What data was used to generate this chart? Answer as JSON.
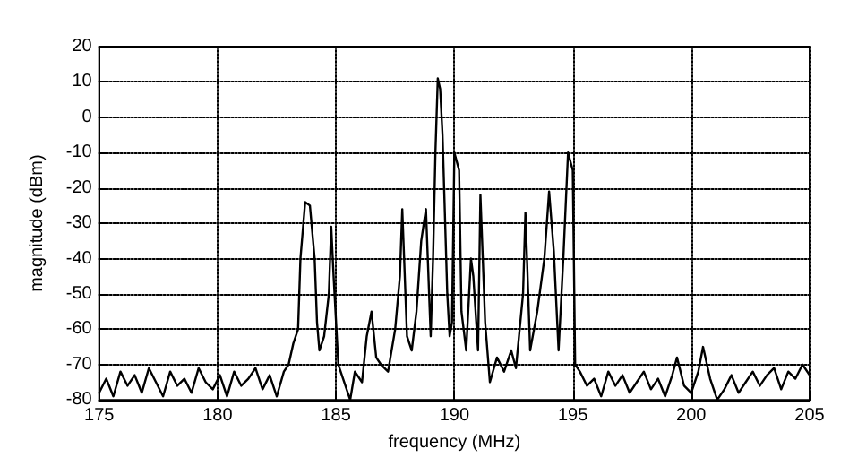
{
  "chart_data": {
    "type": "line",
    "xlabel": "frequency (MHz)",
    "ylabel": "magnitude (dBm)",
    "xlim": [
      175,
      205
    ],
    "ylim": [
      -80,
      20
    ],
    "xticks": [
      175,
      180,
      185,
      190,
      195,
      200,
      205
    ],
    "yticks": [
      -80,
      -70,
      -60,
      -50,
      -40,
      -30,
      -20,
      -10,
      0,
      10,
      20
    ],
    "grid": true,
    "marker": "none",
    "line_style": "solid",
    "series": [
      {
        "color": "#000000",
        "x": [
          175,
          175.3,
          175.6,
          175.9,
          176.2,
          176.5,
          176.8,
          177.1,
          177.4,
          177.7,
          178,
          178.3,
          178.6,
          178.9,
          179.2,
          179.5,
          179.8,
          180.1,
          180.4,
          180.7,
          181,
          181.3,
          181.6,
          181.9,
          182.2,
          182.5,
          182.8,
          183,
          183.2,
          183.4,
          183.5,
          183.7,
          183.9,
          184.1,
          184.2,
          184.3,
          184.5,
          184.7,
          184.8,
          184.9,
          185.1,
          185.3,
          185.6,
          185.8,
          186.1,
          186.3,
          186.5,
          186.7,
          186.9,
          187.2,
          187.5,
          187.7,
          187.8,
          188,
          188.2,
          188.4,
          188.6,
          188.8,
          189,
          189.1,
          189.2,
          189.3,
          189.4,
          189.5,
          189.7,
          189.8,
          189.9,
          190,
          190.2,
          190.3,
          190.5,
          190.7,
          190.8,
          191,
          191.1,
          191.3,
          191.5,
          191.8,
          192.1,
          192.4,
          192.6,
          192.9,
          193,
          193.2,
          193.5,
          193.8,
          194,
          194.2,
          194.4,
          194.6,
          194.8,
          195,
          195.1,
          195.3,
          195.6,
          195.9,
          196.2,
          196.5,
          196.8,
          197.1,
          197.4,
          197.7,
          198,
          198.3,
          198.6,
          198.9,
          199.2,
          199.4,
          199.7,
          200,
          200.3,
          200.5,
          200.8,
          201.1,
          201.4,
          201.7,
          202,
          202.3,
          202.6,
          202.9,
          203.2,
          203.5,
          203.8,
          204.1,
          204.4,
          204.7,
          205
        ],
        "values": [
          -78,
          -74,
          -79,
          -72,
          -76,
          -73,
          -78,
          -71,
          -75,
          -79,
          -72,
          -76,
          -74,
          -78,
          -71,
          -75,
          -77,
          -73,
          -79,
          -72,
          -76,
          -74,
          -71,
          -77,
          -73,
          -79,
          -72,
          -70,
          -64,
          -60,
          -40,
          -24,
          -25,
          -40,
          -58,
          -66,
          -62,
          -50,
          -31,
          -45,
          -70,
          -74,
          -80,
          -72,
          -75,
          -62,
          -55,
          -68,
          -70,
          -72,
          -60,
          -45,
          -26,
          -62,
          -66,
          -55,
          -35,
          -26,
          -62,
          -40,
          -10,
          11,
          8,
          -5,
          -50,
          -62,
          -58,
          -10,
          -15,
          -55,
          -66,
          -40,
          -45,
          -66,
          -22,
          -58,
          -75,
          -68,
          -72,
          -66,
          -71,
          -50,
          -27,
          -66,
          -55,
          -40,
          -21,
          -38,
          -66,
          -40,
          -10,
          -15,
          -70,
          -72,
          -76,
          -74,
          -79,
          -72,
          -76,
          -73,
          -78,
          -75,
          -72,
          -77,
          -74,
          -79,
          -73,
          -68,
          -76,
          -78,
          -72,
          -65,
          -74,
          -80,
          -77,
          -73,
          -78,
          -75,
          -72,
          -76,
          -73,
          -71,
          -77,
          -72,
          -74,
          -70,
          -73
        ]
      }
    ]
  }
}
